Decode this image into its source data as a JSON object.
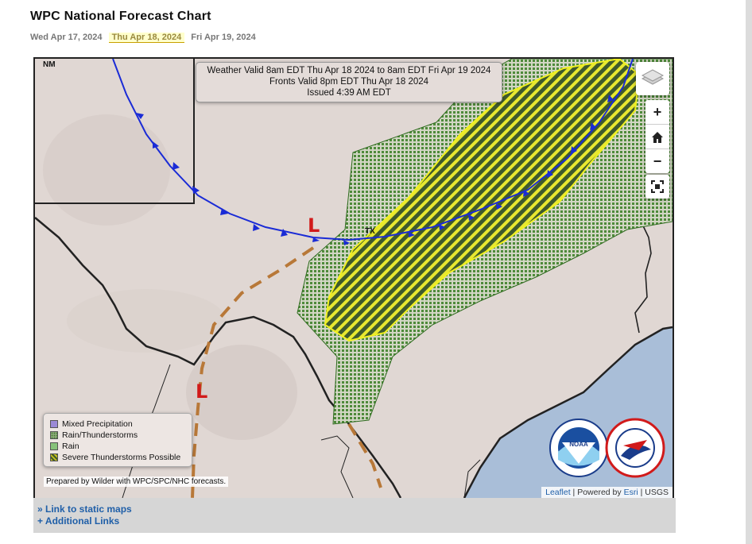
{
  "header": {
    "title": "WPC National Forecast Chart"
  },
  "day_tabs": [
    {
      "label": "Wed Apr 17, 2024",
      "active": false
    },
    {
      "label": "Thu Apr 18, 2024",
      "active": true
    },
    {
      "label": "Fri Apr 19, 2024",
      "active": false
    }
  ],
  "valid_box": {
    "line1": "Weather Valid 8am EDT Thu Apr 18 2024 to 8am EDT Fri Apr 19 2024",
    "line2": "Fronts Valid 8pm EDT Thu Apr 18 2024",
    "line3": "Issued 4:39 AM EDT"
  },
  "map": {
    "state_labels": {
      "nm": "NM",
      "tx": "TX"
    },
    "low_symbol": "L",
    "zoom_in": "+",
    "zoom_out": "−",
    "prepared_by": "Prepared by Wilder with WPC/SPC/NHC forecasts.",
    "attribution": {
      "leaflet": "Leaflet",
      "sep1": " | Powered by ",
      "esri": "Esri",
      "sep2": " | USGS"
    },
    "colors": {
      "land": "#e0d7d3",
      "water": "#a9bed8",
      "rain_thunder": "#4e8a3a",
      "severe": "#e8e830",
      "cold_front": "#1a2bd6",
      "trough": "#b87838",
      "low": "#d11a1a"
    }
  },
  "legend": {
    "items": [
      {
        "label": "Mixed Precipitation",
        "color": "#9b8ad6"
      },
      {
        "label": "Rain/Thunderstorms",
        "color": "#7fa86a"
      },
      {
        "label": "Rain",
        "color": "#86c27a"
      },
      {
        "label": "Severe Thunderstorms Possible",
        "color": "#c8c020"
      }
    ]
  },
  "logos": {
    "noaa": "NOAA",
    "nws": "NATIONAL WEATHER SERVICE"
  },
  "links": {
    "static_maps": "» Link to static maps",
    "additional": "+ Additional Links"
  }
}
